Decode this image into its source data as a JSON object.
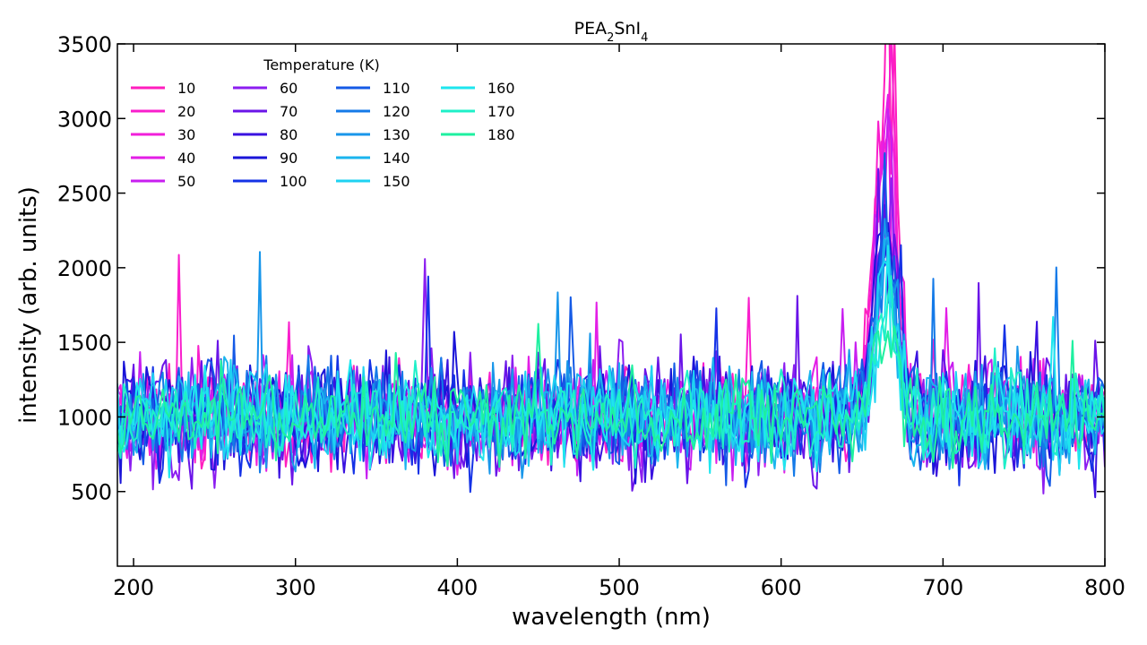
{
  "chart_data": {
    "type": "line",
    "title_main": "PEA",
    "title_sub1": "2",
    "title_mid": "SnI",
    "title_sub2": "4",
    "xlabel": "wavelength (nm)",
    "ylabel": "intensity (arb. units)",
    "xlim": [
      190,
      800
    ],
    "ylim": [
      0,
      3500
    ],
    "x_ticks": [
      200,
      300,
      400,
      500,
      600,
      700,
      800
    ],
    "y_ticks": [
      500,
      1000,
      1500,
      2000,
      2500,
      3000,
      3500
    ],
    "x_step_nm": 2,
    "baseline": 1000,
    "peak_center_nm": 665,
    "legend": {
      "title": "Temperature (K)",
      "placement": "top-left",
      "columns": 4
    },
    "series": [
      {
        "name": "10",
        "color": "#ff1ebe",
        "noise": 260,
        "peak": 2600
      },
      {
        "name": "20",
        "color": "#f91ecc",
        "noise": 270,
        "peak": 2300
      },
      {
        "name": "30",
        "color": "#f11fda",
        "noise": 280,
        "peak": 2100
      },
      {
        "name": "40",
        "color": "#e31ee6",
        "noise": 290,
        "peak": 1900
      },
      {
        "name": "50",
        "color": "#c81ef0",
        "noise": 300,
        "peak": 1700
      },
      {
        "name": "60",
        "color": "#8c1ef0",
        "noise": 330,
        "peak": 1550
      },
      {
        "name": "70",
        "color": "#6a14e8",
        "noise": 360,
        "peak": 1400
      },
      {
        "name": "80",
        "color": "#3a12e0",
        "noise": 340,
        "peak": 1300
      },
      {
        "name": "90",
        "color": "#1a14d8",
        "noise": 330,
        "peak": 1250
      },
      {
        "name": "100",
        "color": "#1432e6",
        "noise": 320,
        "peak": 1200
      },
      {
        "name": "110",
        "color": "#145ae6",
        "noise": 310,
        "peak": 1150
      },
      {
        "name": "120",
        "color": "#147ae8",
        "noise": 300,
        "peak": 1100
      },
      {
        "name": "130",
        "color": "#1896ea",
        "noise": 290,
        "peak": 1050
      },
      {
        "name": "140",
        "color": "#1ab4ee",
        "noise": 280,
        "peak": 1000
      },
      {
        "name": "150",
        "color": "#1ed2f2",
        "noise": 270,
        "peak": 900
      },
      {
        "name": "160",
        "color": "#1ee6ee",
        "noise": 260,
        "peak": 800
      },
      {
        "name": "170",
        "color": "#1ef0c8",
        "noise": 250,
        "peak": 700
      },
      {
        "name": "180",
        "color": "#1ef0a0",
        "noise": 240,
        "peak": 600
      }
    ]
  }
}
